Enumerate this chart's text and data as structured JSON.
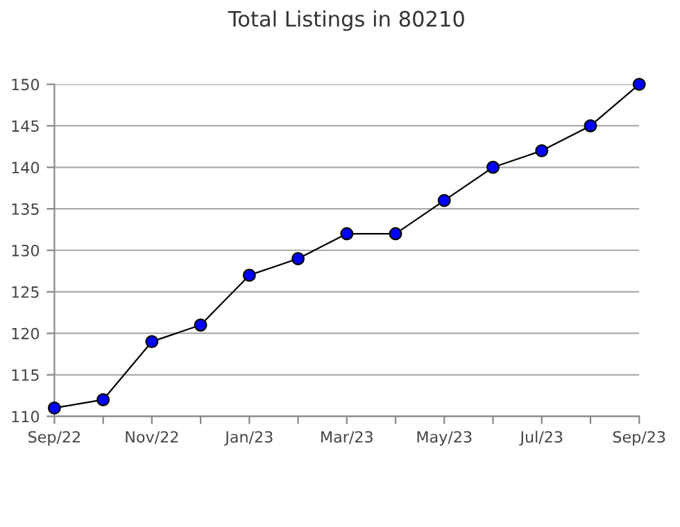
{
  "chart_data": {
    "type": "line",
    "title": "Total Listings in 80210",
    "categories": [
      "Sep/22",
      null,
      "Nov/22",
      null,
      "Jan/23",
      null,
      "Mar/23",
      null,
      "May/23",
      null,
      "Jul/23",
      null,
      "Sep/23"
    ],
    "series": [
      {
        "color": "#0000ff",
        "values": [
          111,
          112,
          119,
          121,
          127,
          129,
          132,
          132,
          136,
          140,
          142,
          145,
          150
        ]
      }
    ],
    "ylim": [
      110,
      150
    ],
    "yticks": [
      110,
      115,
      120,
      125,
      130,
      135,
      140,
      145,
      150
    ],
    "grid": "y",
    "marker": "circle",
    "line_style": "solid",
    "legend": false
  }
}
